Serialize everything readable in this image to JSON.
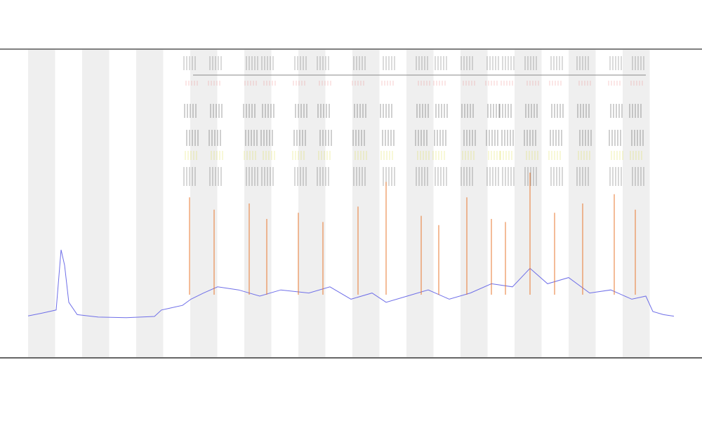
{
  "chart_data": {
    "type": "line",
    "xlim": [
      0,
      920
    ],
    "ylim": [
      0,
      100
    ],
    "series": [
      {
        "color": "#6f6fe8",
        "x": [
          0,
          20,
          40,
          47,
          52,
          58,
          70,
          100,
          140,
          180,
          190,
          200,
          220,
          232,
          250,
          270,
          300,
          330,
          360,
          400,
          430,
          460,
          490,
          510,
          540,
          570,
          600,
          630,
          660,
          690,
          715,
          740,
          770,
          800,
          830,
          860,
          880,
          890,
          905,
          920
        ],
        "values": [
          13.6,
          14.5,
          15.5,
          35,
          30,
          18,
          14,
          13.2,
          13,
          13.4,
          15.5,
          16,
          17,
          19,
          21,
          23,
          22,
          20,
          22,
          21,
          23,
          19,
          21,
          18,
          20,
          22,
          19,
          21,
          24,
          23,
          29,
          24,
          26,
          21,
          22,
          19,
          20,
          15,
          14,
          13.5
        ]
      },
      {
        "color": "#e8752a",
        "x": [
          230,
          265,
          315,
          340,
          385,
          420,
          470,
          510,
          560,
          585,
          625,
          660,
          680,
          715,
          750,
          790,
          835,
          865
        ],
        "values": [
          52,
          48,
          50,
          45,
          47,
          44,
          49,
          57,
          46,
          43,
          52,
          45,
          44,
          60,
          47,
          50,
          53,
          48
        ]
      }
    ]
  }
}
